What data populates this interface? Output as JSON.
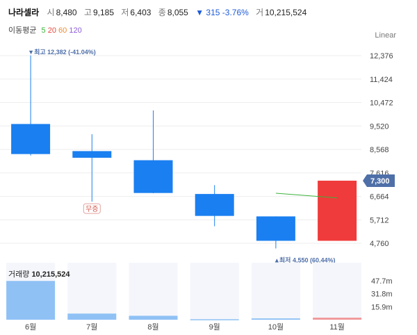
{
  "header": {
    "name": "나라셀라",
    "open_label": "시",
    "open": "8,480",
    "high_label": "고",
    "high": "9,185",
    "low_label": "저",
    "low": "6,403",
    "close_label": "종",
    "close": "8,055",
    "change": "▼ 315 -3.76%",
    "volume_label": "거",
    "volume": "10,215,524"
  },
  "moving_average": {
    "label": "이동평균",
    "periods": [
      {
        "value": "5",
        "color": "#3bb33b"
      },
      {
        "value": "20",
        "color": "#e8483c"
      },
      {
        "value": "60",
        "color": "#f08a2c"
      },
      {
        "value": "120",
        "color": "#8a5cd6"
      }
    ]
  },
  "scale_mode": "Linear",
  "volume_title_label": "거래량",
  "volume_title_value": "10,215,524",
  "colors": {
    "up": "#ef3b3b",
    "down": "#1a7ff0",
    "up_volume": "#f0999b",
    "down_volume": "#8fc1f5",
    "grid": "#eeeeee",
    "price_tag": "#4f6fa8",
    "ma5": "#3bb33b"
  },
  "chart_data": {
    "type": "candlestick",
    "categories": [
      "6월",
      "7월",
      "8월",
      "9월",
      "10월",
      "11월"
    ],
    "candles": [
      {
        "open": 9600,
        "high": 12382,
        "low": 8320,
        "close": 8380
      },
      {
        "open": 8500,
        "high": 9185,
        "low": 6450,
        "close": 8230
      },
      {
        "open": 8130,
        "high": 10150,
        "low": 6790,
        "close": 6800
      },
      {
        "open": 6760,
        "high": 7120,
        "low": 5450,
        "close": 5870
      },
      {
        "open": 5850,
        "high": 5850,
        "low": 4550,
        "close": 4860
      },
      {
        "open": 4860,
        "high": 7300,
        "low": 4860,
        "close": 7300
      }
    ],
    "price_ticks": [
      "12,376",
      "11,424",
      "10,472",
      "9,520",
      "8,568",
      "7,616",
      "6,664",
      "5,712",
      "4,760"
    ],
    "price_tick_values": [
      12376,
      11424,
      10472,
      9520,
      8568,
      7616,
      6664,
      5712,
      4760
    ],
    "current_price": "7,300",
    "max_annotation": "최고 12,382 (-41.04%)",
    "min_annotation": "최저 4,550 (60.44%)",
    "event_label": "무증",
    "ma5": {
      "from": {
        "category": "10월",
        "value": 6790
      },
      "to": {
        "category": "11월",
        "value": 6600
      }
    },
    "volume": {
      "values": [
        47.5,
        7.5,
        4.8,
        0.6,
        1.6,
        2.5
      ],
      "ticks": [
        "47.7m",
        "31.8m",
        "15.9m"
      ],
      "tick_values": [
        47.7,
        31.8,
        15.9
      ],
      "unit": "m"
    }
  }
}
